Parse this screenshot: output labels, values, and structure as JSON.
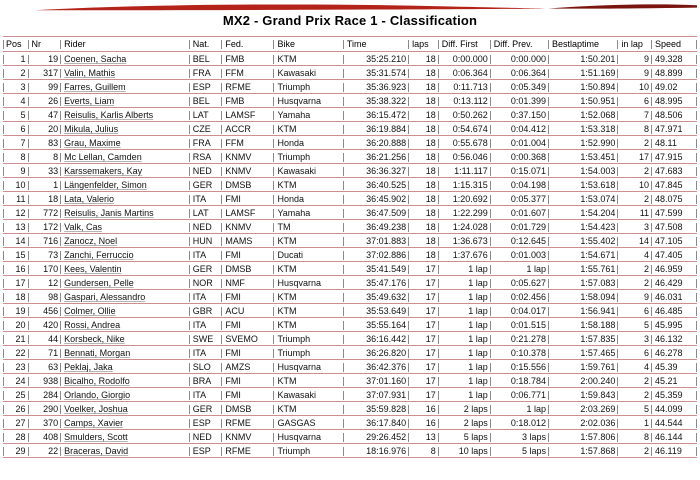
{
  "title": "MX2 - Grand Prix Race 1 - Classification",
  "colors": {
    "swoosh_red": "#b3231a",
    "swoosh_dark_red": "#7a140e",
    "grid_pink": "#cf8e8e",
    "grid_gray": "#8a8a8a"
  },
  "table": {
    "columns": [
      "Pos",
      "Nr",
      "Rider",
      "Nat.",
      "Fed.",
      "Bike",
      "Time",
      "laps",
      "Diff. First",
      "Diff. Prev.",
      "Bestlaptime",
      "in lap",
      "Speed"
    ],
    "rows": [
      [
        "1",
        "19",
        "Coenen, Sacha",
        "BEL",
        "FMB",
        "KTM",
        "35:25.210",
        "18",
        "0:00.000",
        "0:00.000",
        "1:50.201",
        "9",
        "49.328"
      ],
      [
        "2",
        "317",
        "Valin, Mathis",
        "FRA",
        "FFM",
        "Kawasaki",
        "35:31.574",
        "18",
        "0:06.364",
        "0:06.364",
        "1:51.169",
        "9",
        "48.899"
      ],
      [
        "3",
        "99",
        "Farres, Guillem",
        "ESP",
        "RFME",
        "Triumph",
        "35:36.923",
        "18",
        "0:11.713",
        "0:05.349",
        "1:50.894",
        "10",
        "49.02"
      ],
      [
        "4",
        "26",
        "Everts, Liam",
        "BEL",
        "FMB",
        "Husqvarna",
        "35:38.322",
        "18",
        "0:13.112",
        "0:01.399",
        "1:50.951",
        "6",
        "48.995"
      ],
      [
        "5",
        "47",
        "Reisulis, Karlis Alberts",
        "LAT",
        "LAMSF",
        "Yamaha",
        "36:15.472",
        "18",
        "0:50.262",
        "0:37.150",
        "1:52.068",
        "7",
        "48.506"
      ],
      [
        "6",
        "20",
        "Mikula, Julius",
        "CZE",
        "ACCR",
        "KTM",
        "36:19.884",
        "18",
        "0:54.674",
        "0:04.412",
        "1:53.318",
        "8",
        "47.971"
      ],
      [
        "7",
        "83",
        "Grau, Maxime",
        "FRA",
        "FFM",
        "Honda",
        "36:20.888",
        "18",
        "0:55.678",
        "0:01.004",
        "1:52.990",
        "2",
        "48.11"
      ],
      [
        "8",
        "8",
        "Mc Lellan, Camden",
        "RSA",
        "KNMV",
        "Triumph",
        "36:21.256",
        "18",
        "0:56.046",
        "0:00.368",
        "1:53.451",
        "17",
        "47.915"
      ],
      [
        "9",
        "33",
        "Karssemakers, Kay",
        "NED",
        "KNMV",
        "Kawasaki",
        "36:36.327",
        "18",
        "1:11.117",
        "0:15.071",
        "1:54.003",
        "2",
        "47.683"
      ],
      [
        "10",
        "1",
        "Längenfelder, Simon",
        "GER",
        "DMSB",
        "KTM",
        "36:40.525",
        "18",
        "1:15.315",
        "0:04.198",
        "1:53.618",
        "10",
        "47.845"
      ],
      [
        "11",
        "18",
        "Lata, Valerio",
        "ITA",
        "FMI",
        "Honda",
        "36:45.902",
        "18",
        "1:20.692",
        "0:05.377",
        "1:53.074",
        "2",
        "48.075"
      ],
      [
        "12",
        "772",
        "Reisulis, Janis Martins",
        "LAT",
        "LAMSF",
        "Yamaha",
        "36:47.509",
        "18",
        "1:22.299",
        "0:01.607",
        "1:54.204",
        "11",
        "47.599"
      ],
      [
        "13",
        "172",
        "Valk, Cas",
        "NED",
        "KNMV",
        "TM",
        "36:49.238",
        "18",
        "1:24.028",
        "0:01.729",
        "1:54.423",
        "3",
        "47.508"
      ],
      [
        "14",
        "716",
        "Zanocz, Noel",
        "HUN",
        "MAMS",
        "KTM",
        "37:01.883",
        "18",
        "1:36.673",
        "0:12.645",
        "1:55.402",
        "14",
        "47.105"
      ],
      [
        "15",
        "73",
        "Zanchi, Ferruccio",
        "ITA",
        "FMI",
        "Ducati",
        "37:02.886",
        "18",
        "1:37.676",
        "0:01.003",
        "1:54.671",
        "4",
        "47.405"
      ],
      [
        "16",
        "170",
        "Kees, Valentin",
        "GER",
        "DMSB",
        "KTM",
        "35:41.549",
        "17",
        "1 lap",
        "1 lap",
        "1:55.761",
        "2",
        "46.959"
      ],
      [
        "17",
        "12",
        "Gundersen, Pelle",
        "NOR",
        "NMF",
        "Husqvarna",
        "35:47.176",
        "17",
        "1 lap",
        "0:05.627",
        "1:57.083",
        "2",
        "46.429"
      ],
      [
        "18",
        "98",
        "Gaspari, Alessandro",
        "ITA",
        "FMI",
        "KTM",
        "35:49.632",
        "17",
        "1 lap",
        "0:02.456",
        "1:58.094",
        "9",
        "46.031"
      ],
      [
        "19",
        "456",
        "Colmer, Ollie",
        "GBR",
        "ACU",
        "KTM",
        "35:53.649",
        "17",
        "1 lap",
        "0:04.017",
        "1:56.941",
        "6",
        "46.485"
      ],
      [
        "20",
        "420",
        "Rossi, Andrea",
        "ITA",
        "FMI",
        "KTM",
        "35:55.164",
        "17",
        "1 lap",
        "0:01.515",
        "1:58.188",
        "5",
        "45.995"
      ],
      [
        "21",
        "44",
        "Korsbeck, Nike",
        "SWE",
        "SVEMO",
        "Triumph",
        "36:16.442",
        "17",
        "1 lap",
        "0:21.278",
        "1:57.835",
        "3",
        "46.132"
      ],
      [
        "22",
        "71",
        "Bennati, Morgan",
        "ITA",
        "FMI",
        "Triumph",
        "36:26.820",
        "17",
        "1 lap",
        "0:10.378",
        "1:57.465",
        "6",
        "46.278"
      ],
      [
        "23",
        "63",
        "Peklaj, Jaka",
        "SLO",
        "AMZS",
        "Husqvarna",
        "36:42.376",
        "17",
        "1 lap",
        "0:15.556",
        "1:59.761",
        "4",
        "45.39"
      ],
      [
        "24",
        "938",
        "Bicalho, Rodolfo",
        "BRA",
        "FMI",
        "KTM",
        "37:01.160",
        "17",
        "1 lap",
        "0:18.784",
        "2:00.240",
        "2",
        "45.21"
      ],
      [
        "25",
        "284",
        "Orlando, Giorgio",
        "ITA",
        "FMI",
        "Kawasaki",
        "37:07.931",
        "17",
        "1 lap",
        "0:06.771",
        "1:59.843",
        "2",
        "45.359"
      ],
      [
        "26",
        "290",
        "Voelker, Joshua",
        "GER",
        "DMSB",
        "KTM",
        "35:59.828",
        "16",
        "2 laps",
        "1 lap",
        "2:03.269",
        "5",
        "44.099"
      ],
      [
        "27",
        "370",
        "Camps, Xavier",
        "ESP",
        "RFME",
        "GASGAS",
        "36:17.840",
        "16",
        "2 laps",
        "0:18.012",
        "2:02.036",
        "1",
        "44.544"
      ],
      [
        "28",
        "408",
        "Smulders, Scott",
        "NED",
        "KNMV",
        "Husqvarna",
        "29:26.452",
        "13",
        "5 laps",
        "3 laps",
        "1:57.806",
        "8",
        "46.144"
      ],
      [
        "29",
        "22",
        "Braceras, David",
        "ESP",
        "RFME",
        "Triumph",
        "18:16.976",
        "8",
        "10 laps",
        "5 laps",
        "1:57.868",
        "2",
        "46.119"
      ]
    ]
  }
}
